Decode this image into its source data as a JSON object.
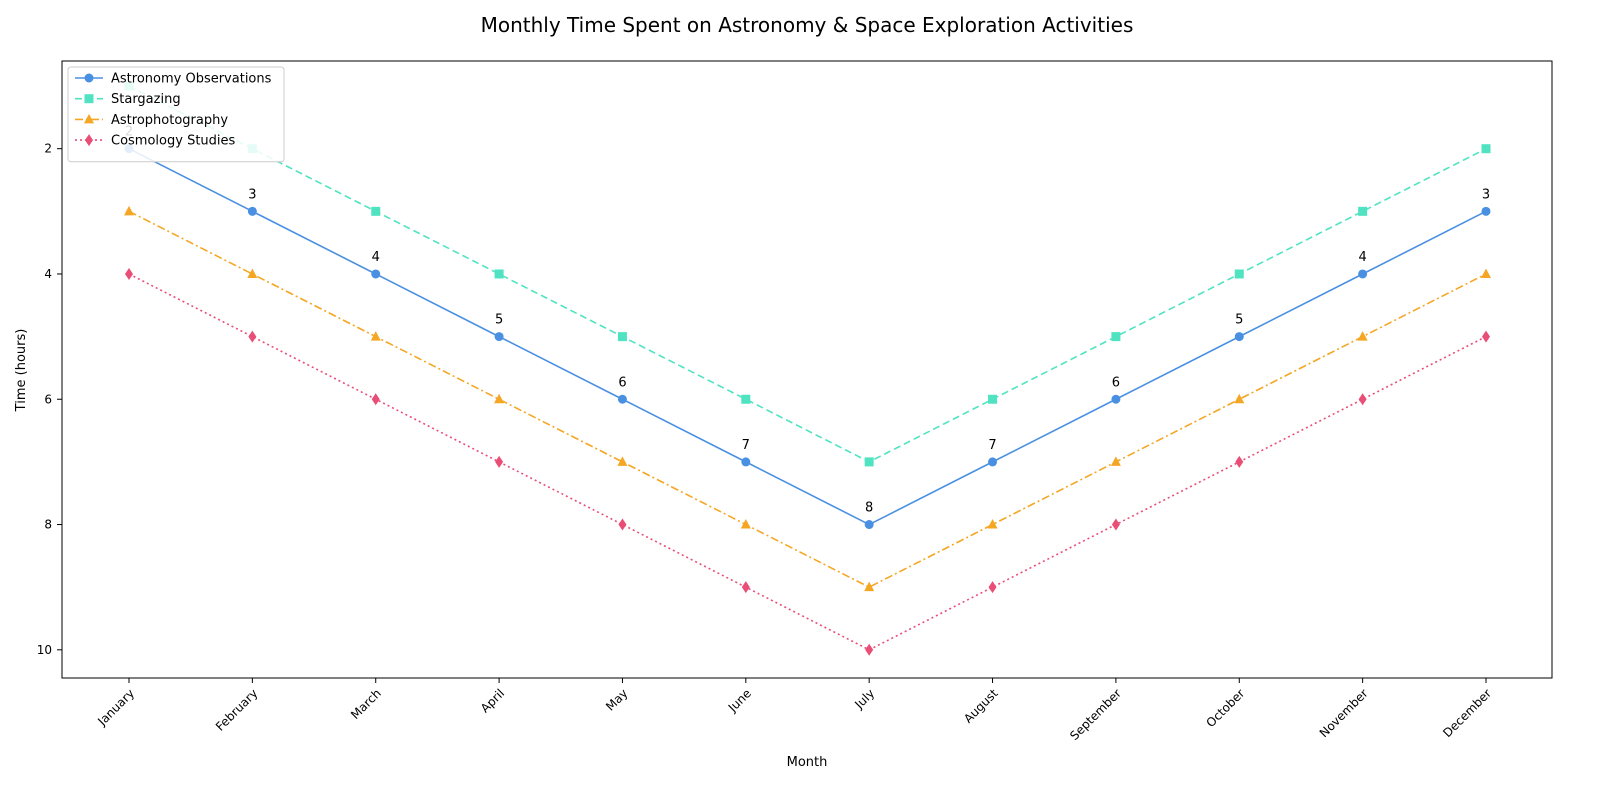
{
  "chart_data": {
    "type": "line",
    "title": "Monthly Time Spent on Astronomy & Space Exploration Activities",
    "xlabel": "Month",
    "ylabel": "Time (hours)",
    "categories": [
      "January",
      "February",
      "March",
      "April",
      "May",
      "June",
      "July",
      "August",
      "September",
      "October",
      "November",
      "December"
    ],
    "y_inverted": true,
    "ylim": [
      0.6,
      10.45
    ],
    "yticks": [
      2,
      4,
      6,
      8,
      10
    ],
    "grid": false,
    "legend_position": "top-left",
    "series": [
      {
        "name": "Astronomy Observations",
        "values": [
          2,
          3,
          4,
          5,
          6,
          7,
          8,
          7,
          6,
          5,
          4,
          3
        ],
        "color": "#4a90e2",
        "marker": "circle",
        "linestyle": "solid",
        "labeled": true
      },
      {
        "name": "Stargazing",
        "values": [
          1,
          2,
          3,
          4,
          5,
          6,
          7,
          6,
          5,
          4,
          3,
          2
        ],
        "color": "#50e3c2",
        "marker": "square",
        "linestyle": "dashed",
        "labeled": false
      },
      {
        "name": "Astrophotography",
        "values": [
          3,
          4,
          5,
          6,
          7,
          8,
          9,
          8,
          7,
          6,
          5,
          4
        ],
        "color": "#f5a623",
        "marker": "triangle",
        "linestyle": "dashdot",
        "labeled": false
      },
      {
        "name": "Cosmology Studies",
        "values": [
          4,
          5,
          6,
          7,
          8,
          9,
          10,
          9,
          8,
          7,
          6,
          5
        ],
        "color": "#e94e77",
        "marker": "diamond",
        "linestyle": "dotted",
        "labeled": false
      }
    ]
  }
}
